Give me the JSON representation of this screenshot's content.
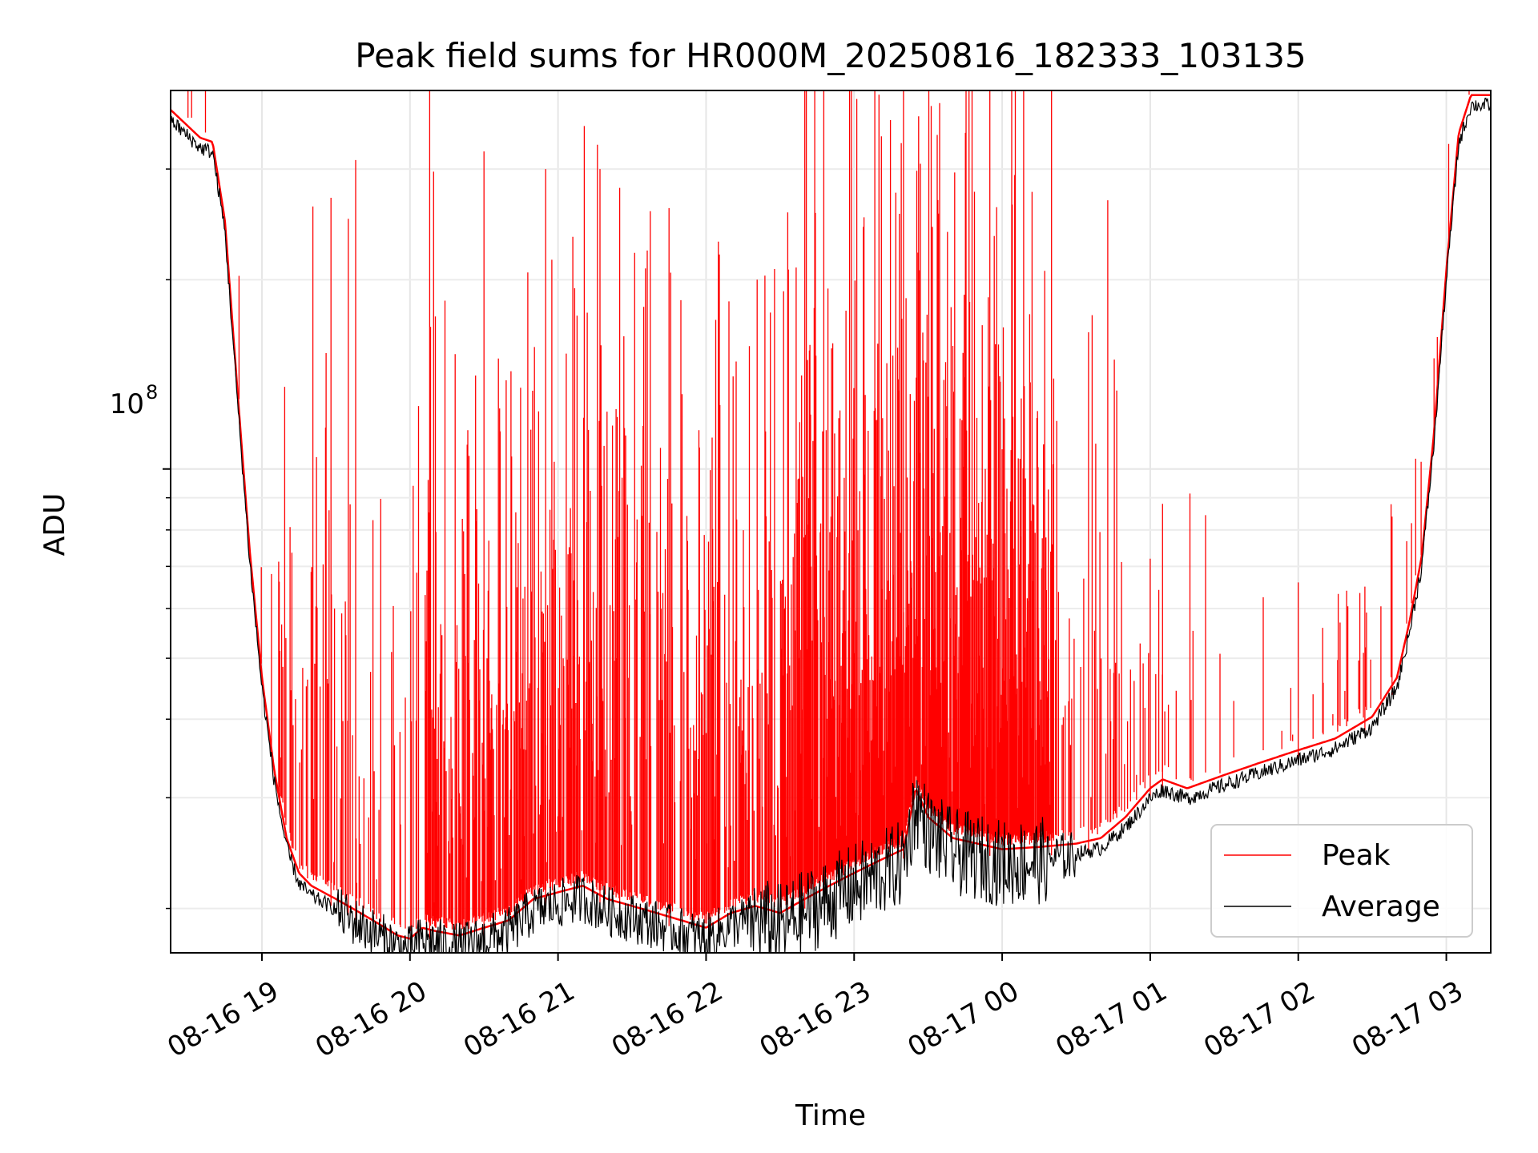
{
  "chart_data": {
    "type": "line",
    "title": "Peak field sums for HR000M_20250816_182333_103135",
    "xlabel": "Time",
    "ylabel": "ADU",
    "x_range": [
      "2025-08-16 18:23",
      "2025-08-17 03:18"
    ],
    "x_ticks": [
      "08-16 19",
      "08-16 20",
      "08-16 21",
      "08-16 22",
      "08-16 23",
      "08-17 00",
      "08-17 01",
      "08-17 02",
      "08-17 03"
    ],
    "y_scale": "log",
    "ylim": [
      17000000,
      400000000
    ],
    "y_major_tick": {
      "value": 100000000,
      "label": "10",
      "exponent": "8"
    },
    "y_minor_ticks": [
      20000000,
      30000000,
      40000000,
      50000000,
      60000000,
      70000000,
      80000000,
      90000000,
      200000000,
      300000000
    ],
    "grid": true,
    "legend": {
      "position": "lower-right",
      "entries": [
        {
          "label": "Peak",
          "color": "#ff0000"
        },
        {
          "label": "Average",
          "color": "#000000"
        }
      ]
    },
    "series": [
      {
        "name": "Average",
        "color": "#000000",
        "times": [
          "18:23",
          "18:35",
          "18:40",
          "18:45",
          "18:50",
          "18:55",
          "19:00",
          "19:05",
          "19:10",
          "19:15",
          "19:20",
          "19:30",
          "19:40",
          "19:50",
          "19:55",
          "20:00",
          "20:05",
          "20:10",
          "20:20",
          "20:30",
          "20:40",
          "20:50",
          "21:00",
          "21:10",
          "21:20",
          "21:30",
          "21:40",
          "21:50",
          "22:00",
          "22:05",
          "22:10",
          "22:20",
          "22:30",
          "22:40",
          "22:50",
          "23:00",
          "23:10",
          "23:20",
          "23:25",
          "23:30",
          "23:40",
          "23:50",
          "00:00",
          "00:15",
          "00:30",
          "00:40",
          "00:50",
          "01:00",
          "01:05",
          "01:15",
          "01:30",
          "01:45",
          "02:00",
          "02:15",
          "02:30",
          "02:40",
          "02:45",
          "02:50",
          "02:55",
          "03:00",
          "03:05",
          "03:10",
          "03:18"
        ],
        "values": [
          360000000,
          325000000,
          320000000,
          240000000,
          130000000,
          72000000,
          45000000,
          32000000,
          25000000,
          22000000,
          21000000,
          20000000,
          19000000,
          18000000,
          17500000,
          17300000,
          18000000,
          17800000,
          17500000,
          18000000,
          18500000,
          20000000,
          20500000,
          21000000,
          20000000,
          19500000,
          19000000,
          18500000,
          18000000,
          18500000,
          19000000,
          19500000,
          19000000,
          20000000,
          21000000,
          22000000,
          23000000,
          24000000,
          30000000,
          27000000,
          25000000,
          24500000,
          24000000,
          24200000,
          24500000,
          25000000,
          27000000,
          30000000,
          31000000,
          30000000,
          31500000,
          33000000,
          34500000,
          36000000,
          39000000,
          45000000,
          55000000,
          70000000,
          110000000,
          200000000,
          330000000,
          380000000,
          380000000
        ]
      },
      {
        "name": "Peak",
        "color": "#ff0000",
        "envelope": "Peak tracks Average with frequent spikes; densest and highest (clipped above 400000000) between 21:45 and 00:20, sparse after 00:30",
        "spike_maxima": [
          {
            "time": "19:28",
            "value": 270000000
          },
          {
            "time": "19:35",
            "value": 250000000
          },
          {
            "time": "19:38",
            "value": 310000000
          },
          {
            "time": "20:08",
            "value": 400000000
          },
          {
            "time": "20:30",
            "value": 320000000
          },
          {
            "time": "20:55",
            "value": 300000000
          },
          {
            "time": "21:17",
            "value": 300000000
          },
          {
            "time": "21:25",
            "value": 280000000
          },
          {
            "time": "21:45",
            "value": 260000000
          },
          {
            "time": "22:05",
            "value": 230000000
          },
          {
            "time": "22:40",
            "value": 400000000
          },
          {
            "time": "23:20",
            "value": 400000000
          },
          {
            "time": "23:55",
            "value": 400000000
          },
          {
            "time": "00:20",
            "value": 400000000
          },
          {
            "time": "00:35",
            "value": 165000000
          },
          {
            "time": "01:05",
            "value": 88000000
          },
          {
            "time": "01:00",
            "value": 72000000
          },
          {
            "time": "02:00",
            "value": 66000000
          },
          {
            "time": "02:27",
            "value": 65000000
          },
          {
            "time": "02:38",
            "value": 84000000
          },
          {
            "time": "02:55",
            "value": 150000000
          }
        ]
      }
    ]
  }
}
